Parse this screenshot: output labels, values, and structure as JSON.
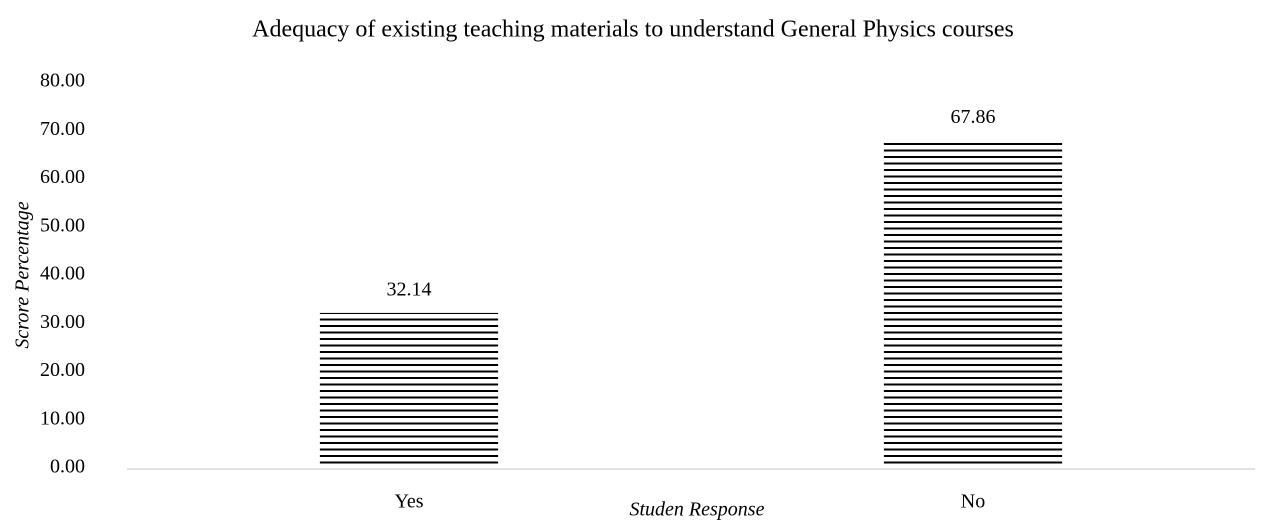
{
  "chart_data": {
    "type": "bar",
    "title": "Adequacy of existing teaching materials to understand General Physics courses",
    "x_label": "Studen Response",
    "y_label": "Scrore Percentage",
    "categories": [
      "Yes",
      "No"
    ],
    "values": [
      32.14,
      67.86
    ],
    "color": "#000000",
    "ylim": [
      0,
      80
    ],
    "yticks": [
      {
        "value": 0,
        "label": "0.00"
      },
      {
        "value": 10,
        "label": "10.00"
      },
      {
        "value": 20,
        "label": "20.00"
      },
      {
        "value": 30,
        "label": "30.00"
      },
      {
        "value": 40,
        "label": "40.00"
      },
      {
        "value": 50,
        "label": "50.00"
      },
      {
        "value": 60,
        "label": "60.00"
      },
      {
        "value": 70,
        "label": "70.00"
      },
      {
        "value": 80,
        "label": "80.00"
      }
    ],
    "grid": false
  }
}
